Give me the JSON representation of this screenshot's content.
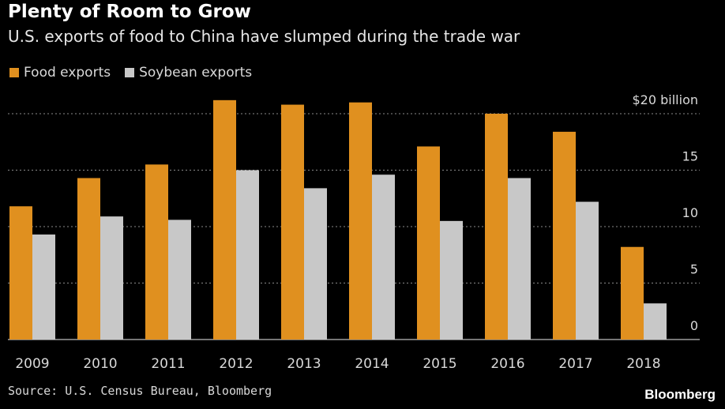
{
  "header": {
    "title": "Plenty of Room to Grow",
    "subtitle": "U.S. exports of food to China have slumped during the trade war"
  },
  "colors": {
    "background": "#000000",
    "food": "#e0901f",
    "soybean": "#c8c8c8",
    "grid": "#8a8a8a"
  },
  "chart_data": {
    "type": "bar",
    "categories": [
      "2009",
      "2010",
      "2011",
      "2012",
      "2013",
      "2014",
      "2015",
      "2016",
      "2017",
      "2018"
    ],
    "series": [
      {
        "name": "Food exports",
        "values": [
          11.8,
          14.3,
          15.5,
          21.2,
          20.8,
          21.0,
          17.1,
          20.0,
          18.4,
          8.2
        ]
      },
      {
        "name": "Soybean exports",
        "values": [
          9.3,
          10.9,
          10.6,
          15.0,
          13.4,
          14.6,
          10.5,
          14.3,
          12.2,
          3.2
        ]
      }
    ],
    "ylim": [
      0,
      20
    ],
    "yticks": [
      {
        "value": 0,
        "label": "0"
      },
      {
        "value": 5,
        "label": "5"
      },
      {
        "value": 10,
        "label": "10"
      },
      {
        "value": 15,
        "label": "15"
      },
      {
        "value": 20,
        "label": "$20 billion"
      }
    ],
    "grid": true,
    "legend_position": "top-left"
  },
  "footer": {
    "source": "Source: U.S. Census Bureau, Bloomberg",
    "brand": "Bloomberg"
  }
}
